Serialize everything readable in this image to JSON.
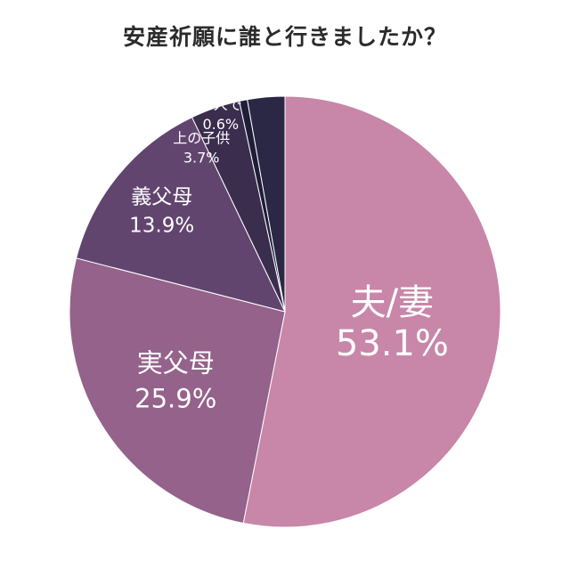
{
  "chart_data": {
    "type": "pie",
    "title": "安産祈願に誰と行きましたか？",
    "slices": [
      {
        "label": "夫/妻",
        "value": 53.1,
        "value_text": "53.1%",
        "color": "#c886a8"
      },
      {
        "label": "実父母",
        "value": 25.9,
        "value_text": "25.9%",
        "color": "#94628b"
      },
      {
        "label": "義父母",
        "value": 13.9,
        "value_text": "13.9%",
        "color": "#61456f"
      },
      {
        "label": "上の子供",
        "value": 3.7,
        "value_text": "3.7%",
        "color": "#3a2d4e"
      },
      {
        "label": "一人で",
        "value": 0.6,
        "value_text": "0.6%",
        "color": "#1f1d38"
      }
    ],
    "other": {
      "label": "",
      "value": 2.8,
      "color": "#2b2846"
    },
    "legend": "none",
    "direction": "clockwise",
    "start": "top"
  }
}
